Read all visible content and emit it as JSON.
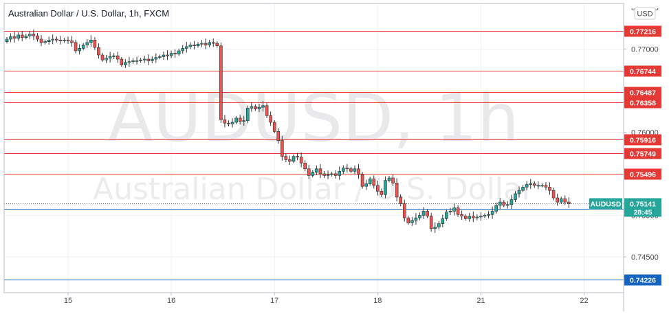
{
  "chart_data": {
    "type": "candlestick",
    "title": "Australian Dollar / U.S. Dollar, 1h, FXCM",
    "watermark_symbol": "AUDUSD, 1h",
    "watermark_name": "Australian Dollar / U.S. Dollar",
    "currency": "USD",
    "symbol": "AUDUSD",
    "ylim": [
      0.7407,
      0.7755
    ],
    "y_ticks": [
      {
        "value": 0.77,
        "label": "0.77000"
      },
      {
        "value": 0.765,
        "label": "0.76500"
      },
      {
        "value": 0.76,
        "label": "0.76000"
      },
      {
        "value": 0.755,
        "label": "0.75500"
      },
      {
        "value": 0.75,
        "label": "0.75000"
      },
      {
        "value": 0.745,
        "label": "0.74500"
      }
    ],
    "x_ticks": [
      {
        "bar": 16,
        "label": "15"
      },
      {
        "bar": 43,
        "label": "16"
      },
      {
        "bar": 70,
        "label": "17"
      },
      {
        "bar": 97,
        "label": "18"
      },
      {
        "bar": 124,
        "label": "21"
      },
      {
        "bar": 151,
        "label": "22"
      }
    ],
    "levels": [
      {
        "value": 0.77216,
        "label": "0.77216",
        "color": "#e53935"
      },
      {
        "value": 0.76744,
        "label": "0.76744",
        "color": "#e53935"
      },
      {
        "value": 0.76487,
        "label": "0.76487",
        "color": "#e53935"
      },
      {
        "value": 0.76358,
        "label": "0.76358",
        "color": "#e53935"
      },
      {
        "value": 0.75916,
        "label": "0.75916",
        "color": "#e53935"
      },
      {
        "value": 0.75749,
        "label": "0.75749",
        "color": "#e53935"
      },
      {
        "value": 0.75496,
        "label": "0.75496",
        "color": "#e53935"
      },
      {
        "value": 0.75076,
        "label": "0.75076",
        "color": "#1565c0"
      },
      {
        "value": 0.74226,
        "label": "0.74226",
        "color": "#1565c0"
      }
    ],
    "last_price": {
      "value": 0.75141,
      "label": "0.75141",
      "countdown": "28:45",
      "color": "#26a69a"
    },
    "up_color": "#26a69a",
    "down_color": "#ef5350",
    "closes": [
      0.7712,
      0.7715,
      0.7713,
      0.7717,
      0.7714,
      0.7716,
      0.7718,
      0.7716,
      0.7712,
      0.7708,
      0.7709,
      0.7711,
      0.7712,
      0.7711,
      0.771,
      0.7711,
      0.771,
      0.7708,
      0.7698,
      0.7701,
      0.7705,
      0.7708,
      0.7711,
      0.7702,
      0.7693,
      0.7687,
      0.7689,
      0.7691,
      0.7692,
      0.7688,
      0.7681,
      0.7684,
      0.7685,
      0.7686,
      0.7686,
      0.7687,
      0.7688,
      0.7686,
      0.7688,
      0.769,
      0.7691,
      0.7693,
      0.7692,
      0.7695,
      0.7694,
      0.7698,
      0.7701,
      0.7703,
      0.7705,
      0.7704,
      0.7706,
      0.7707,
      0.7705,
      0.7708,
      0.7707,
      0.7704,
      0.7615,
      0.7611,
      0.761,
      0.7612,
      0.7617,
      0.7613,
      0.7614,
      0.7629,
      0.7631,
      0.7628,
      0.763,
      0.7632,
      0.762,
      0.7612,
      0.7601,
      0.759,
      0.7571,
      0.7567,
      0.7565,
      0.7571,
      0.757,
      0.7563,
      0.7556,
      0.7548,
      0.7552,
      0.7556,
      0.755,
      0.7548,
      0.7549,
      0.755,
      0.7548,
      0.7553,
      0.7557,
      0.7556,
      0.7553,
      0.7556,
      0.7549,
      0.7535,
      0.7538,
      0.7544,
      0.7536,
      0.7529,
      0.7525,
      0.7542,
      0.7545,
      0.7539,
      0.7522,
      0.7514,
      0.7497,
      0.7491,
      0.7494,
      0.7497,
      0.75,
      0.7505,
      0.7499,
      0.7484,
      0.7486,
      0.749,
      0.7496,
      0.7504,
      0.7505,
      0.7509,
      0.7501,
      0.7499,
      0.7496,
      0.7499,
      0.7497,
      0.7498,
      0.7499,
      0.75,
      0.7501,
      0.7505,
      0.7512,
      0.7516,
      0.7512,
      0.7513,
      0.7519,
      0.7526,
      0.753,
      0.7534,
      0.7537,
      0.7538,
      0.7536,
      0.7536,
      0.7536,
      0.7534,
      0.753,
      0.7521,
      0.7516,
      0.752,
      0.7516,
      0.7514
    ]
  }
}
